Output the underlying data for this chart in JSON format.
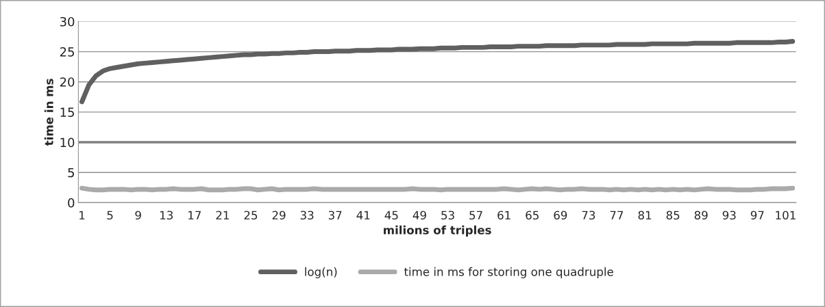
{
  "chart_data": {
    "type": "line",
    "xlabel": "milions of triples",
    "ylabel": "time in ms",
    "categories": [
      "1",
      null,
      null,
      null,
      "5",
      null,
      null,
      null,
      "9",
      null,
      null,
      null,
      "13",
      null,
      null,
      null,
      "17",
      null,
      null,
      null,
      "21",
      null,
      null,
      null,
      "25",
      null,
      null,
      null,
      "29",
      null,
      null,
      null,
      "33",
      null,
      null,
      null,
      "37",
      null,
      null,
      null,
      "41",
      null,
      null,
      null,
      "45",
      null,
      null,
      null,
      "49",
      null,
      null,
      null,
      "53",
      null,
      null,
      null,
      "57",
      null,
      null,
      null,
      "61",
      null,
      null,
      null,
      "65",
      null,
      null,
      null,
      "69",
      null,
      null,
      null,
      "73",
      null,
      null,
      null,
      "77",
      null,
      null,
      null,
      "81",
      null,
      null,
      null,
      "85",
      null,
      null,
      null,
      "89",
      null,
      null,
      null,
      "93",
      null,
      null,
      null,
      "97",
      null,
      null,
      null,
      "101",
      null
    ],
    "series": [
      {
        "name": "log(n)",
        "color": "#606060",
        "values": [
          16.7,
          19.5,
          21.0,
          21.8,
          22.2,
          22.4,
          22.6,
          22.8,
          23.0,
          23.1,
          23.2,
          23.3,
          23.4,
          23.5,
          23.6,
          23.7,
          23.8,
          23.9,
          24.0,
          24.1,
          24.2,
          24.3,
          24.4,
          24.5,
          24.5,
          24.6,
          24.6,
          24.7,
          24.7,
          24.8,
          24.8,
          24.9,
          24.9,
          25.0,
          25.0,
          25.0,
          25.1,
          25.1,
          25.1,
          25.2,
          25.2,
          25.2,
          25.3,
          25.3,
          25.3,
          25.4,
          25.4,
          25.4,
          25.5,
          25.5,
          25.5,
          25.6,
          25.6,
          25.6,
          25.7,
          25.7,
          25.7,
          25.7,
          25.8,
          25.8,
          25.8,
          25.8,
          25.9,
          25.9,
          25.9,
          25.9,
          26.0,
          26.0,
          26.0,
          26.0,
          26.0,
          26.1,
          26.1,
          26.1,
          26.1,
          26.1,
          26.2,
          26.2,
          26.2,
          26.2,
          26.2,
          26.3,
          26.3,
          26.3,
          26.3,
          26.3,
          26.3,
          26.4,
          26.4,
          26.4,
          26.4,
          26.4,
          26.4,
          26.5,
          26.5,
          26.5,
          26.5,
          26.5,
          26.5,
          26.6,
          26.6,
          26.7
        ]
      },
      {
        "name": "time in ms for storing one quadruple",
        "color": "#aaaaaa",
        "values": [
          2.4,
          2.2,
          2.1,
          2.1,
          2.2,
          2.2,
          2.2,
          2.1,
          2.2,
          2.2,
          2.1,
          2.2,
          2.2,
          2.3,
          2.2,
          2.2,
          2.2,
          2.3,
          2.1,
          2.1,
          2.1,
          2.2,
          2.2,
          2.3,
          2.3,
          2.1,
          2.2,
          2.3,
          2.1,
          2.2,
          2.2,
          2.2,
          2.2,
          2.3,
          2.2,
          2.2,
          2.2,
          2.2,
          2.2,
          2.2,
          2.2,
          2.2,
          2.2,
          2.2,
          2.2,
          2.2,
          2.2,
          2.3,
          2.2,
          2.2,
          2.2,
          2.1,
          2.2,
          2.2,
          2.2,
          2.2,
          2.2,
          2.2,
          2.2,
          2.2,
          2.3,
          2.2,
          2.1,
          2.2,
          2.3,
          2.2,
          2.3,
          2.2,
          2.1,
          2.2,
          2.2,
          2.3,
          2.2,
          2.2,
          2.2,
          2.1,
          2.2,
          2.1,
          2.2,
          2.1,
          2.2,
          2.1,
          2.2,
          2.1,
          2.2,
          2.1,
          2.2,
          2.1,
          2.2,
          2.3,
          2.2,
          2.2,
          2.2,
          2.1,
          2.1,
          2.1,
          2.2,
          2.2,
          2.3,
          2.3,
          2.3,
          2.4
        ]
      }
    ],
    "ylim": [
      0,
      30
    ],
    "yticks": [
      0,
      5,
      10,
      15,
      20,
      25,
      30
    ],
    "ref_lines": [
      {
        "axis": "y",
        "value": 10,
        "color": "#808080"
      }
    ],
    "grid": "y",
    "legend": "bottom",
    "marker": "none",
    "line_style": "solid"
  }
}
